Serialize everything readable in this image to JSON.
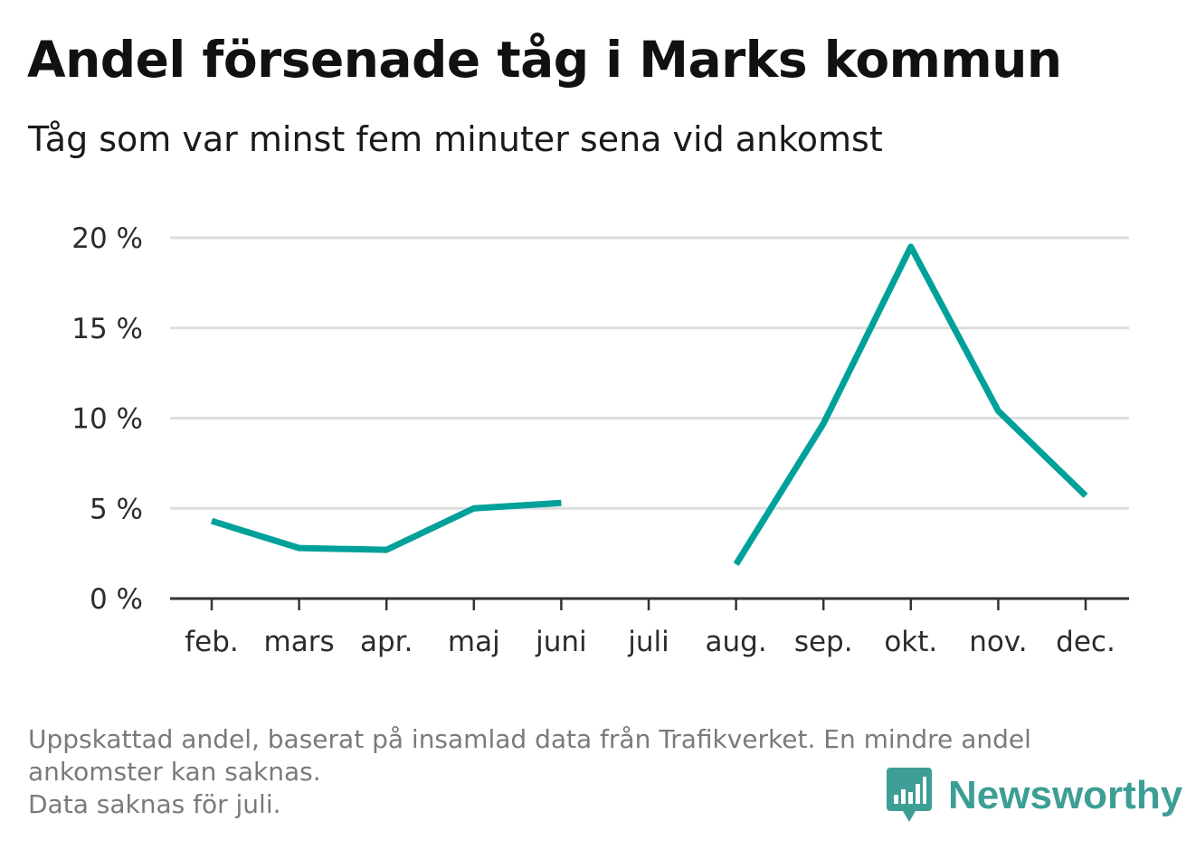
{
  "header": {
    "title": "Andel försenade tåg i Marks kommun",
    "subtitle": "Tåg som var minst fem minuter sena vid ankomst"
  },
  "footnote": {
    "line1": "Uppskattad andel, baserat på insamlad data från Trafikverket. En mindre andel",
    "line2": "ankomster kan saknas.",
    "line3": "Data saknas för juli."
  },
  "brand": {
    "name": "Newsworthy",
    "icon": "bar-chart-speech-bubble-icon",
    "color": "#3d9e95"
  },
  "colors": {
    "line": "#00a19a",
    "grid": "#dddddd",
    "axis": "#333333"
  },
  "chart_data": {
    "type": "line",
    "title": "Andel försenade tåg i Marks kommun",
    "subtitle": "Tåg som var minst fem minuter sena vid ankomst",
    "xlabel": "",
    "ylabel": "",
    "categories": [
      "feb.",
      "mars",
      "apr.",
      "maj",
      "juni",
      "juli",
      "aug.",
      "sep.",
      "okt.",
      "nov.",
      "dec."
    ],
    "series": [
      {
        "values": [
          4.3,
          2.8,
          2.7,
          5.0,
          5.3,
          null,
          1.9,
          9.7,
          19.5,
          10.4,
          5.7
        ]
      }
    ],
    "ylim": [
      0,
      20
    ],
    "yticks": [
      0,
      5,
      10,
      15,
      20
    ],
    "ytick_labels": [
      "0 %",
      "5 %",
      "10 %",
      "15 %",
      "20 %"
    ],
    "grid": true,
    "legend": "none"
  }
}
